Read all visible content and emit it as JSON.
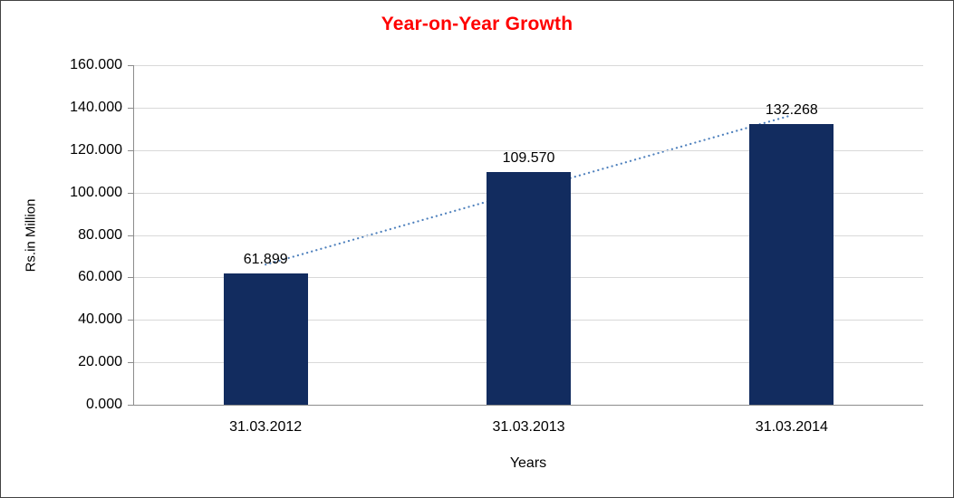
{
  "window": {
    "background": "#FFFFFF",
    "border_color": "#424242"
  },
  "chart_data": {
    "type": "bar",
    "title": "Year-on-Year Growth",
    "xlabel": "Years",
    "ylabel": "Rs.in Million",
    "categories": [
      "31.03.2012",
      "31.03.2013",
      "31.03.2014"
    ],
    "values": [
      61.899,
      109.57,
      132.268
    ],
    "data_labels": [
      "61.899",
      "109.570",
      "132.268"
    ],
    "ylim": [
      0,
      160
    ],
    "ytick_labels": [
      "0.000",
      "20.000",
      "40.000",
      "60.000",
      "80.000",
      "100.000",
      "120.000",
      "140.000",
      "160.000"
    ],
    "grid": true,
    "legend": "none",
    "trendline": {
      "type": "linear",
      "style": "dotted"
    },
    "colors": {
      "title": "#FF0000",
      "bar": "#122C5F",
      "trendline": "#4F81BD",
      "gridline": "#D9D9D9",
      "axis": "#8C8C8C",
      "text": "#000000"
    }
  }
}
